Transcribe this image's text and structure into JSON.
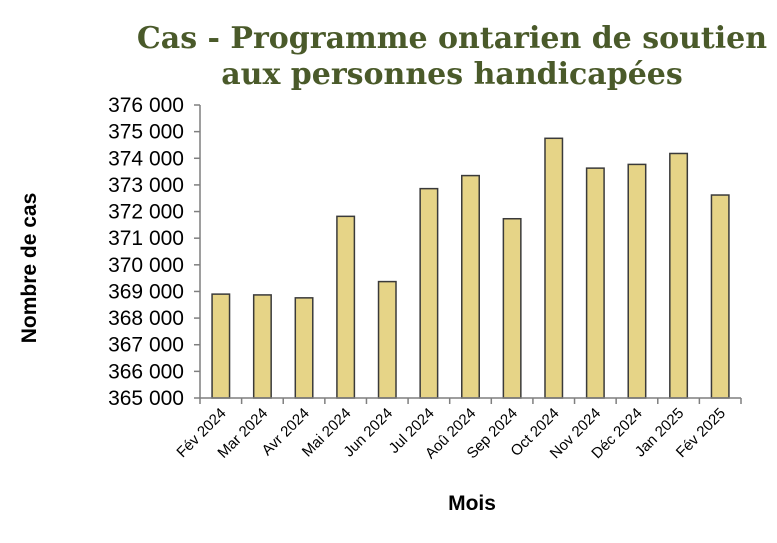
{
  "chart_data": {
    "type": "bar",
    "title_line1": "Cas - Programme ontarien de soutien",
    "title_line2": "aux personnes handicapées",
    "xlabel": "Mois",
    "ylabel": "Nombre de cas",
    "ylim": [
      365000,
      376000
    ],
    "ytick_step": 1000,
    "yticks": [
      "365 000",
      "366 000",
      "367 000",
      "368 000",
      "369 000",
      "370 000",
      "371 000",
      "372 000",
      "373 000",
      "374 000",
      "375 000",
      "376 000"
    ],
    "categories": [
      "Fév 2024",
      "Mar 2024",
      "Avr 2024",
      "Mai 2024",
      "Jun 2024",
      "Jul 2024",
      "Aoû 2024",
      "Sep 2024",
      "Oct 2024",
      "Nov 2024",
      "Déc 2024",
      "Jan 2025",
      "Fév 2025"
    ],
    "values": [
      368900,
      368870,
      368760,
      371820,
      369370,
      372860,
      373350,
      371730,
      374750,
      373630,
      373770,
      374180,
      372620
    ],
    "grid": false,
    "legend": "none",
    "colors": {
      "bar_fill": "#e6d487",
      "bar_stroke": "#3a3a3a",
      "title": "#4a5a2a",
      "axis": "#7f7f7f"
    }
  }
}
